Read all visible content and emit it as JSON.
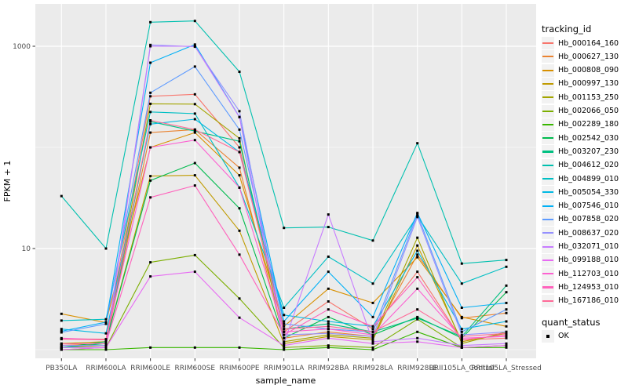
{
  "figure": {
    "kind": "ggplot-line-chart",
    "background": "#FFFFFF"
  },
  "panel": {
    "background": "#EBEBEB",
    "grid_color": "#FFFFFF",
    "tick_color": "#333333",
    "axis_text_color": "#4D4D4D",
    "title_text_color": "#000000",
    "legend_key_background": "#F2F2F2"
  },
  "legend": {
    "tracking_title": "tracking_id",
    "quant_title": "quant_status",
    "quant_items": [
      {
        "label": "OK"
      }
    ]
  },
  "chart_data": {
    "type": "line",
    "title": "",
    "xlabel": "sample_name",
    "ylabel": "FPKM + 1",
    "y_scale": "log10",
    "ylim": [
      0.85,
      2400
    ],
    "y_breaks": [
      1000,
      10
    ],
    "y_break_labels": [
      "1000",
      "10"
    ],
    "y_minor_breaks": [
      100,
      1
    ],
    "grid": true,
    "legend_position": "right",
    "point_color": "#000000",
    "quant_status": "OK",
    "categories": [
      "PB350LA",
      "RRIM600LA",
      "RRIM600LE",
      "RRIM600SE",
      "RRIM600PE",
      "RRIM901LA",
      "RRIM928BA",
      "RRIM928LA",
      "RRIM928LE",
      "RRII105LA_Control",
      "RRII105LA_Stressed"
    ],
    "series": [
      {
        "name": "Hb_000164_160",
        "color": "#F8766D",
        "values": [
          1.28,
          1.27,
          320,
          335,
          100,
          1.5,
          3.0,
          1.6,
          5.9,
          1.25,
          1.3
        ]
      },
      {
        "name": "Hb_000627_130",
        "color": "#EA8331",
        "values": [
          1.1,
          1.15,
          140,
          150,
          63,
          1.3,
          1.5,
          1.35,
          8.7,
          2.05,
          2.3
        ]
      },
      {
        "name": "Hb_000808_090",
        "color": "#D89000",
        "values": [
          2.26,
          1.85,
          100,
          140,
          53,
          1.7,
          4.0,
          2.9,
          8.2,
          2.1,
          1.7
        ]
      },
      {
        "name": "Hb_000997_130",
        "color": "#C09B00",
        "values": [
          1.15,
          1.2,
          52,
          53,
          15,
          1.15,
          1.35,
          1.25,
          10.7,
          1.2,
          1.45
        ]
      },
      {
        "name": "Hb_001153_250",
        "color": "#A3A500",
        "values": [
          1.05,
          1.1,
          270,
          268,
          123,
          1.2,
          1.4,
          1.3,
          12.8,
          1.15,
          1.5
        ]
      },
      {
        "name": "Hb_002066_050",
        "color": "#7CAE00",
        "values": [
          1.0,
          1.05,
          7.3,
          8.6,
          3.2,
          1.05,
          1.1,
          1.05,
          2.0,
          1.05,
          1.1
        ]
      },
      {
        "name": "Hb_002289_180",
        "color": "#39B600",
        "values": [
          1.0,
          1.0,
          1.05,
          1.05,
          1.05,
          1.0,
          1.05,
          1.0,
          1.5,
          1.05,
          1.05
        ]
      },
      {
        "name": "Hb_002542_030",
        "color": "#00BB4E",
        "values": [
          1.05,
          1.2,
          47,
          70,
          25,
          1.3,
          2.1,
          1.4,
          2.1,
          1.3,
          3.7
        ]
      },
      {
        "name": "Hb_003207_230",
        "color": "#00C081",
        "values": [
          1.05,
          1.15,
          180,
          145,
          115,
          1.6,
          1.8,
          1.5,
          2.05,
          1.35,
          4.3
        ]
      },
      {
        "name": "Hb_004612_020",
        "color": "#00C0AF",
        "values": [
          33,
          10,
          1730,
          1780,
          560,
          16,
          16.3,
          12,
          110,
          7.1,
          7.7
        ]
      },
      {
        "name": "Hb_004899_010",
        "color": "#00BFC4",
        "values": [
          1.94,
          2.0,
          224,
          216,
          40,
          2.6,
          8.3,
          4.5,
          21,
          4.5,
          6.6
        ]
      },
      {
        "name": "Hb_005054_330",
        "color": "#00B9E3",
        "values": [
          1.6,
          1.45,
          170,
          190,
          90,
          2.2,
          1.9,
          1.7,
          9.5,
          1.6,
          1.9
        ]
      },
      {
        "name": "Hb_007546_010",
        "color": "#00B0F6",
        "values": [
          1.52,
          1.87,
          687,
          1040,
          200,
          1.9,
          5.9,
          2.1,
          22.5,
          2.6,
          2.9
        ]
      },
      {
        "name": "Hb_007858_020",
        "color": "#5E9BFF",
        "values": [
          1.48,
          1.8,
          347,
          630,
          150,
          1.8,
          1.6,
          1.5,
          21.8,
          1.5,
          2.5
        ]
      },
      {
        "name": "Hb_008637_020",
        "color": "#9590FF",
        "values": [
          1.1,
          1.1,
          1030,
          990,
          228,
          1.4,
          1.45,
          1.35,
          20.5,
          1.4,
          1.5
        ]
      },
      {
        "name": "Hb_032071_010",
        "color": "#C77CFF",
        "values": [
          1.05,
          1.05,
          1000,
          1000,
          199,
          1.15,
          21.7,
          1.2,
          1.3,
          1.1,
          1.15
        ]
      },
      {
        "name": "Hb_099188_010",
        "color": "#E76BF3",
        "values": [
          1.0,
          1.05,
          5.3,
          5.9,
          2.07,
          1.1,
          1.3,
          1.15,
          1.2,
          1.05,
          1.1
        ]
      },
      {
        "name": "Hb_112703_010",
        "color": "#FD61D1",
        "values": [
          1.3,
          1.25,
          100,
          118,
          40,
          1.5,
          1.6,
          1.4,
          4.0,
          1.3,
          1.35
        ]
      },
      {
        "name": "Hb_124953_010",
        "color": "#FF62BC",
        "values": [
          1.14,
          1.15,
          32,
          42,
          8.7,
          1.4,
          2.5,
          1.7,
          5.2,
          1.25,
          1.4
        ]
      },
      {
        "name": "Hb_167186_010",
        "color": "#FF6A98",
        "values": [
          1.27,
          1.25,
          185,
          150,
          90,
          1.6,
          1.7,
          1.5,
          2.5,
          1.35,
          1.45
        ]
      }
    ]
  }
}
